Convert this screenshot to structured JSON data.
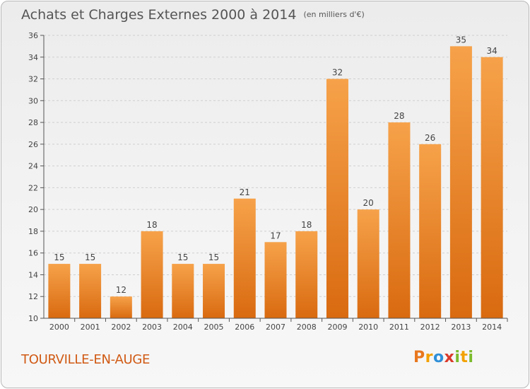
{
  "header": {
    "title": "Achats et Charges Externes 2000 à 2014",
    "unit": "(en milliers d'€)"
  },
  "footer": {
    "city": "TOURVILLE-EN-AUGE",
    "logo_letters": [
      "P",
      "r",
      "o",
      "x",
      "i",
      "t",
      "i"
    ],
    "logo_colors": [
      "#e8771e",
      "#f2a100",
      "#2f8fd8",
      "#d93a2a",
      "#7cbb2d",
      "#f2a100",
      "#7cbb2d"
    ]
  },
  "colors": {
    "bar_top": "#f6a24a",
    "bar_bottom": "#d96a10",
    "grid": "#cfcfcf",
    "axis": "#555555"
  },
  "chart_data": {
    "type": "bar",
    "title": "Achats et Charges Externes 2000 à 2014",
    "subtitle": "(en milliers d'€)",
    "categories": [
      "2000",
      "2001",
      "2002",
      "2003",
      "2004",
      "2005",
      "2006",
      "2007",
      "2008",
      "2009",
      "2010",
      "2011",
      "2012",
      "2013",
      "2014"
    ],
    "values": [
      15,
      15,
      12,
      18,
      15,
      15,
      21,
      17,
      18,
      32,
      20,
      28,
      26,
      35,
      34
    ],
    "ylim": [
      10,
      36
    ],
    "yticks": [
      10,
      12,
      14,
      16,
      18,
      20,
      22,
      24,
      26,
      28,
      30,
      32,
      34,
      36
    ],
    "xlabel": "",
    "ylabel": "",
    "grid": true,
    "data_labels": true
  }
}
